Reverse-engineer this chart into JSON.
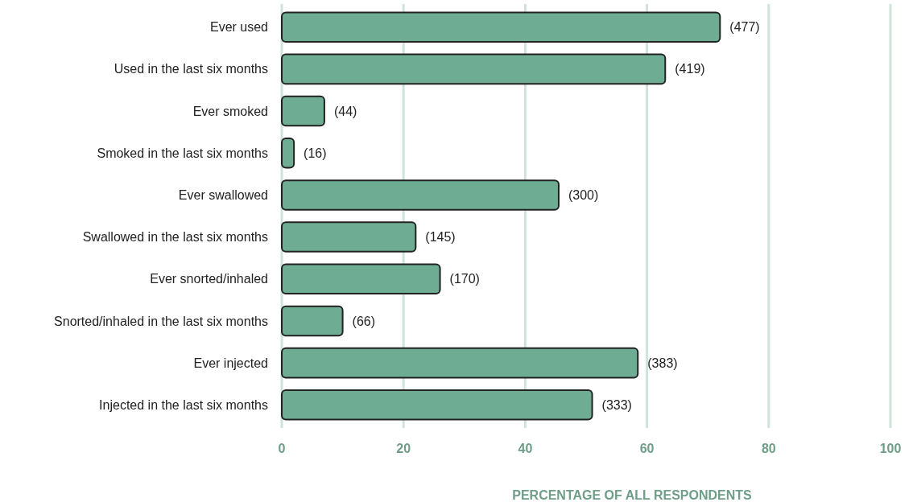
{
  "chart_data": {
    "type": "bar",
    "orientation": "horizontal",
    "xlabel": "PERCENTAGE OF ALL RESPONDENTS",
    "categories": [
      "Ever used",
      "Used in the last six months",
      "Ever smoked",
      "Smoked in the last six months",
      "Ever swallowed",
      "Swallowed in the last six months",
      "Ever snorted/inhaled",
      "Snorted/inhaled in the last six months",
      "Ever injected",
      "Injected in the last six months"
    ],
    "values": [
      72,
      63,
      7,
      2,
      45.5,
      22,
      26,
      10,
      58.5,
      51
    ],
    "annotations": [
      {
        "text": "(477)",
        "x": 72,
        "y": "Ever used"
      },
      {
        "text": "(419)",
        "x": 63,
        "y": "Used in the last six months"
      },
      {
        "text": "(44)",
        "x": 7,
        "y": "Ever smoked"
      },
      {
        "text": "(16)",
        "x": 2,
        "y": "Smoked in the last six months"
      },
      {
        "text": "(300)",
        "x": 45.5,
        "y": "Ever swallowed"
      },
      {
        "text": "(145)",
        "x": 22,
        "y": "Swallowed in the last six months"
      },
      {
        "text": "(170)",
        "x": 26,
        "y": "Ever snorted/inhaled"
      },
      {
        "text": "(66)",
        "x": 10,
        "y": "Snorted/inhaled in the last six months"
      },
      {
        "text": "(383)",
        "x": 58.5,
        "y": "Ever injected"
      },
      {
        "text": "(333)",
        "x": 51,
        "y": "Injected in the last six months"
      }
    ],
    "color": "#6fac94",
    "xlim": [
      0,
      100
    ],
    "xticks": [
      0,
      20,
      40,
      60,
      80,
      100
    ],
    "grid": "x"
  }
}
